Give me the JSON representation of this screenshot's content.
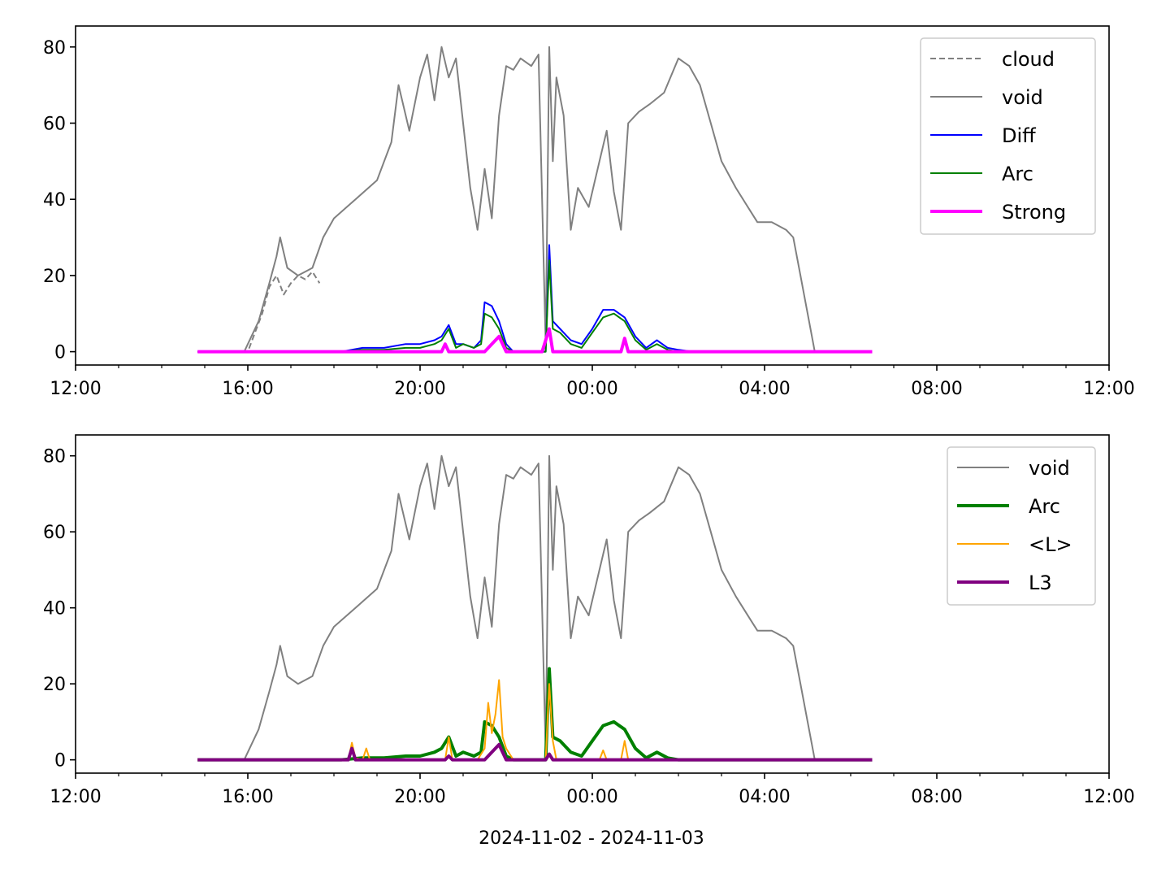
{
  "figure": {
    "xlabel": "2024-11-02 - 2024-11-03"
  },
  "chart_data": [
    {
      "type": "line",
      "title": "",
      "xlabel": "",
      "ylabel": "",
      "x_unit": "time (2024-11-02 12:00 to 2024-11-03 12:00)",
      "xlim": [
        "2024-11-02 12:00",
        "2024-11-03 12:00"
      ],
      "ylim": [
        -3.5,
        85.5
      ],
      "xticks": [
        "12:00",
        "16:00",
        "20:00",
        "00:00",
        "04:00",
        "08:00",
        "12:00"
      ],
      "yticks": [
        "0",
        "20",
        "40",
        "60",
        "80"
      ],
      "grid": false,
      "legend_position": "top-right",
      "series": [
        {
          "name": "cloud",
          "color": "#808080",
          "style": "dashed",
          "x": [
            "2024-11-02 14:50",
            "2024-11-02 16:00",
            "2024-11-02 16:10",
            "2024-11-02 16:20",
            "2024-11-02 16:30",
            "2024-11-02 16:40",
            "2024-11-02 16:50",
            "2024-11-02 17:00",
            "2024-11-02 17:10",
            "2024-11-02 17:20",
            "2024-11-02 17:30",
            "2024-11-02 17:40"
          ],
          "values": [
            0,
            0,
            5,
            10,
            17,
            20,
            15,
            18,
            20,
            19,
            21,
            18
          ]
        },
        {
          "name": "void",
          "color": "#808080",
          "style": "solid",
          "x": [
            "2024-11-02 14:50",
            "2024-11-02 15:55",
            "2024-11-02 16:15",
            "2024-11-02 16:30",
            "2024-11-02 16:40",
            "2024-11-02 16:45",
            "2024-11-02 16:55",
            "2024-11-02 17:10",
            "2024-11-02 17:30",
            "2024-11-02 17:45",
            "2024-11-02 18:00",
            "2024-11-02 18:30",
            "2024-11-02 19:00",
            "2024-11-02 19:20",
            "2024-11-02 19:30",
            "2024-11-02 19:45",
            "2024-11-02 20:00",
            "2024-11-02 20:10",
            "2024-11-02 20:20",
            "2024-11-02 20:30",
            "2024-11-02 20:40",
            "2024-11-02 20:50",
            "2024-11-02 21:00",
            "2024-11-02 21:10",
            "2024-11-02 21:20",
            "2024-11-02 21:30",
            "2024-11-02 21:40",
            "2024-11-02 21:50",
            "2024-11-02 22:00",
            "2024-11-02 22:10",
            "2024-11-02 22:20",
            "2024-11-02 22:35",
            "2024-11-02 22:45",
            "2024-11-02 22:55",
            "2024-11-02 23:00",
            "2024-11-02 23:05",
            "2024-11-02 23:10",
            "2024-11-02 23:20",
            "2024-11-02 23:30",
            "2024-11-02 23:40",
            "2024-11-02 23:55",
            "2024-11-03 00:10",
            "2024-11-03 00:20",
            "2024-11-03 00:30",
            "2024-11-03 00:40",
            "2024-11-03 00:50",
            "2024-11-03 01:05",
            "2024-11-03 01:20",
            "2024-11-03 01:40",
            "2024-11-03 02:00",
            "2024-11-03 02:15",
            "2024-11-03 02:30",
            "2024-11-03 02:45",
            "2024-11-03 03:00",
            "2024-11-03 03:20",
            "2024-11-03 03:40",
            "2024-11-03 03:50",
            "2024-11-03 04:10",
            "2024-11-03 04:30",
            "2024-11-03 04:40",
            "2024-11-03 04:50",
            "2024-11-03 05:00",
            "2024-11-03 05:10"
          ],
          "values": [
            0,
            0,
            8,
            18,
            25,
            30,
            22,
            20,
            22,
            30,
            35,
            40,
            45,
            55,
            70,
            58,
            72,
            78,
            66,
            80,
            72,
            77,
            60,
            43,
            32,
            48,
            35,
            62,
            75,
            74,
            77,
            75,
            78,
            2,
            80,
            50,
            72,
            62,
            32,
            43,
            38,
            50,
            58,
            42,
            32,
            60,
            63,
            65,
            68,
            77,
            75,
            70,
            60,
            50,
            43,
            37,
            34,
            34,
            32,
            30,
            20,
            10,
            0
          ]
        },
        {
          "name": "Diff",
          "color": "#0000ff",
          "style": "solid",
          "x": [
            "2024-11-02 14:50",
            "2024-11-02 18:10",
            "2024-11-02 18:40",
            "2024-11-02 19:10",
            "2024-11-02 19:40",
            "2024-11-02 20:00",
            "2024-11-02 20:20",
            "2024-11-02 20:30",
            "2024-11-02 20:40",
            "2024-11-02 20:50",
            "2024-11-02 21:00",
            "2024-11-02 21:15",
            "2024-11-02 21:25",
            "2024-11-02 21:30",
            "2024-11-02 21:40",
            "2024-11-02 21:50",
            "2024-11-02 22:00",
            "2024-11-02 22:10",
            "2024-11-02 22:20",
            "2024-11-02 22:40",
            "2024-11-02 22:55",
            "2024-11-02 23:00",
            "2024-11-02 23:05",
            "2024-11-02 23:15",
            "2024-11-02 23:30",
            "2024-11-02 23:45",
            "2024-11-03 00:00",
            "2024-11-03 00:15",
            "2024-11-03 00:30",
            "2024-11-03 00:45",
            "2024-11-03 01:00",
            "2024-11-03 01:15",
            "2024-11-03 01:30",
            "2024-11-03 01:45",
            "2024-11-03 02:00",
            "2024-11-03 02:20",
            "2024-11-03 06:30"
          ],
          "values": [
            0,
            0,
            1,
            1,
            2,
            2,
            3,
            4,
            7,
            2,
            2,
            1,
            3,
            13,
            12,
            8,
            2,
            0,
            0,
            0,
            0,
            28,
            8,
            6,
            3,
            2,
            6,
            11,
            11,
            9,
            4,
            1,
            3,
            1,
            0.5,
            0,
            0
          ]
        },
        {
          "name": "Arc",
          "color": "#008000",
          "style": "solid",
          "x": [
            "2024-11-02 14:50",
            "2024-11-02 18:10",
            "2024-11-02 18:40",
            "2024-11-02 19:10",
            "2024-11-02 19:40",
            "2024-11-02 20:00",
            "2024-11-02 20:20",
            "2024-11-02 20:30",
            "2024-11-02 20:40",
            "2024-11-02 20:50",
            "2024-11-02 21:00",
            "2024-11-02 21:15",
            "2024-11-02 21:25",
            "2024-11-02 21:30",
            "2024-11-02 21:40",
            "2024-11-02 21:50",
            "2024-11-02 22:00",
            "2024-11-02 22:10",
            "2024-11-02 22:20",
            "2024-11-02 22:40",
            "2024-11-02 22:55",
            "2024-11-02 23:00",
            "2024-11-02 23:05",
            "2024-11-02 23:15",
            "2024-11-02 23:30",
            "2024-11-02 23:45",
            "2024-11-03 00:00",
            "2024-11-03 00:15",
            "2024-11-03 00:30",
            "2024-11-03 00:45",
            "2024-11-03 01:00",
            "2024-11-03 01:15",
            "2024-11-03 01:30",
            "2024-11-03 01:45",
            "2024-11-03 02:00",
            "2024-11-03 02:20",
            "2024-11-03 06:30"
          ],
          "values": [
            0,
            0,
            0.5,
            0.5,
            1,
            1,
            2,
            3,
            6,
            1,
            2,
            1,
            2,
            10,
            9,
            6,
            1,
            0,
            0,
            0,
            0,
            24,
            6,
            5,
            2,
            1,
            5,
            9,
            10,
            8,
            3,
            0.5,
            2,
            0.5,
            0,
            0,
            0
          ]
        },
        {
          "name": "Strong",
          "color": "#ff00ff",
          "style": "solid",
          "x": [
            "2024-11-02 14:50",
            "2024-11-02 20:30",
            "2024-11-02 20:35",
            "2024-11-02 20:40",
            "2024-11-02 21:30",
            "2024-11-02 21:40",
            "2024-11-02 21:50",
            "2024-11-02 22:00",
            "2024-11-02 22:50",
            "2024-11-02 23:00",
            "2024-11-02 23:05",
            "2024-11-03 00:40",
            "2024-11-03 00:45",
            "2024-11-03 00:50",
            "2024-11-03 06:30"
          ],
          "values": [
            0,
            0,
            2,
            0,
            0,
            2,
            4,
            0,
            0,
            6,
            0,
            0,
            3.5,
            0,
            0
          ]
        }
      ]
    },
    {
      "type": "line",
      "title": "",
      "xlabel": "2024-11-02 - 2024-11-03",
      "ylabel": "",
      "x_unit": "time (2024-11-02 12:00 to 2024-11-03 12:00)",
      "xlim": [
        "2024-11-02 12:00",
        "2024-11-03 12:00"
      ],
      "ylim": [
        -3.5,
        85.5
      ],
      "xticks": [
        "12:00",
        "16:00",
        "20:00",
        "00:00",
        "04:00",
        "08:00",
        "12:00"
      ],
      "yticks": [
        "0",
        "20",
        "40",
        "60",
        "80"
      ],
      "grid": false,
      "legend_position": "top-right",
      "series": [
        {
          "name": "void",
          "color": "#808080",
          "style": "solid",
          "x": [
            "2024-11-02 14:50",
            "2024-11-02 15:55",
            "2024-11-02 16:15",
            "2024-11-02 16:30",
            "2024-11-02 16:40",
            "2024-11-02 16:45",
            "2024-11-02 16:55",
            "2024-11-02 17:10",
            "2024-11-02 17:30",
            "2024-11-02 17:45",
            "2024-11-02 18:00",
            "2024-11-02 18:30",
            "2024-11-02 19:00",
            "2024-11-02 19:20",
            "2024-11-02 19:30",
            "2024-11-02 19:45",
            "2024-11-02 20:00",
            "2024-11-02 20:10",
            "2024-11-02 20:20",
            "2024-11-02 20:30",
            "2024-11-02 20:40",
            "2024-11-02 20:50",
            "2024-11-02 21:00",
            "2024-11-02 21:10",
            "2024-11-02 21:20",
            "2024-11-02 21:30",
            "2024-11-02 21:40",
            "2024-11-02 21:50",
            "2024-11-02 22:00",
            "2024-11-02 22:10",
            "2024-11-02 22:20",
            "2024-11-02 22:35",
            "2024-11-02 22:45",
            "2024-11-02 22:55",
            "2024-11-02 23:00",
            "2024-11-02 23:05",
            "2024-11-02 23:10",
            "2024-11-02 23:20",
            "2024-11-02 23:30",
            "2024-11-02 23:40",
            "2024-11-02 23:55",
            "2024-11-03 00:10",
            "2024-11-03 00:20",
            "2024-11-03 00:30",
            "2024-11-03 00:40",
            "2024-11-03 00:50",
            "2024-11-03 01:05",
            "2024-11-03 01:20",
            "2024-11-03 01:40",
            "2024-11-03 02:00",
            "2024-11-03 02:15",
            "2024-11-03 02:30",
            "2024-11-03 02:45",
            "2024-11-03 03:00",
            "2024-11-03 03:20",
            "2024-11-03 03:40",
            "2024-11-03 03:50",
            "2024-11-03 04:10",
            "2024-11-03 04:30",
            "2024-11-03 04:40",
            "2024-11-03 04:50",
            "2024-11-03 05:00",
            "2024-11-03 05:10"
          ],
          "values": [
            0,
            0,
            8,
            18,
            25,
            30,
            22,
            20,
            22,
            30,
            35,
            40,
            45,
            55,
            70,
            58,
            72,
            78,
            66,
            80,
            72,
            77,
            60,
            43,
            32,
            48,
            35,
            62,
            75,
            74,
            77,
            75,
            78,
            2,
            80,
            50,
            72,
            62,
            32,
            43,
            38,
            50,
            58,
            42,
            32,
            60,
            63,
            65,
            68,
            77,
            75,
            70,
            60,
            50,
            43,
            37,
            34,
            34,
            32,
            30,
            20,
            10,
            0
          ]
        },
        {
          "name": "Arc",
          "color": "#008000",
          "style": "solid",
          "x": [
            "2024-11-02 14:50",
            "2024-11-02 18:10",
            "2024-11-02 18:40",
            "2024-11-02 19:10",
            "2024-11-02 19:40",
            "2024-11-02 20:00",
            "2024-11-02 20:20",
            "2024-11-02 20:30",
            "2024-11-02 20:40",
            "2024-11-02 20:50",
            "2024-11-02 21:00",
            "2024-11-02 21:15",
            "2024-11-02 21:25",
            "2024-11-02 21:30",
            "2024-11-02 21:40",
            "2024-11-02 21:50",
            "2024-11-02 22:00",
            "2024-11-02 22:10",
            "2024-11-02 22:20",
            "2024-11-02 22:40",
            "2024-11-02 22:55",
            "2024-11-02 23:00",
            "2024-11-02 23:05",
            "2024-11-02 23:15",
            "2024-11-02 23:30",
            "2024-11-02 23:45",
            "2024-11-03 00:00",
            "2024-11-03 00:15",
            "2024-11-03 00:30",
            "2024-11-03 00:45",
            "2024-11-03 01:00",
            "2024-11-03 01:15",
            "2024-11-03 01:30",
            "2024-11-03 01:45",
            "2024-11-03 02:00",
            "2024-11-03 02:20",
            "2024-11-03 06:30"
          ],
          "values": [
            0,
            0,
            0.5,
            0.5,
            1,
            1,
            2,
            3,
            6,
            1,
            2,
            1,
            2,
            10,
            9,
            6,
            1,
            0,
            0,
            0,
            0,
            24,
            6,
            5,
            2,
            1,
            5,
            9,
            10,
            8,
            3,
            0.5,
            2,
            0.5,
            0,
            0,
            0
          ]
        },
        {
          "name": "<L>",
          "color": "#ffa500",
          "style": "solid",
          "x": [
            "2024-11-02 14:50",
            "2024-11-02 18:20",
            "2024-11-02 18:25",
            "2024-11-02 18:30",
            "2024-11-02 18:40",
            "2024-11-02 18:45",
            "2024-11-02 18:50",
            "2024-11-02 20:35",
            "2024-11-02 20:40",
            "2024-11-02 20:45",
            "2024-11-02 21:20",
            "2024-11-02 21:30",
            "2024-11-02 21:35",
            "2024-11-02 21:40",
            "2024-11-02 21:45",
            "2024-11-02 21:50",
            "2024-11-02 21:55",
            "2024-11-02 22:00",
            "2024-11-02 22:10",
            "2024-11-02 22:55",
            "2024-11-02 23:00",
            "2024-11-02 23:05",
            "2024-11-02 23:10",
            "2024-11-03 00:10",
            "2024-11-03 00:15",
            "2024-11-03 00:20",
            "2024-11-03 00:40",
            "2024-11-03 00:45",
            "2024-11-03 00:50",
            "2024-11-03 06:30"
          ],
          "values": [
            0,
            0,
            4.5,
            0.5,
            0,
            3,
            0,
            0,
            6,
            0,
            0,
            3,
            15,
            7,
            12,
            21,
            6,
            3,
            0,
            0,
            20,
            5,
            0,
            0,
            2.5,
            0,
            0,
            5,
            0,
            0
          ]
        },
        {
          "name": "L3",
          "color": "#800080",
          "style": "solid",
          "x": [
            "2024-11-02 14:50",
            "2024-11-02 18:20",
            "2024-11-02 18:25",
            "2024-11-02 18:30",
            "2024-11-02 20:35",
            "2024-11-02 20:40",
            "2024-11-02 20:45",
            "2024-11-02 21:30",
            "2024-11-02 21:40",
            "2024-11-02 21:50",
            "2024-11-02 22:00",
            "2024-11-02 22:55",
            "2024-11-02 23:00",
            "2024-11-02 23:05",
            "2024-11-03 06:30"
          ],
          "values": [
            0,
            0,
            3,
            0,
            0,
            1,
            0,
            0,
            2,
            4,
            0,
            0,
            1.5,
            0,
            0
          ]
        }
      ]
    }
  ]
}
